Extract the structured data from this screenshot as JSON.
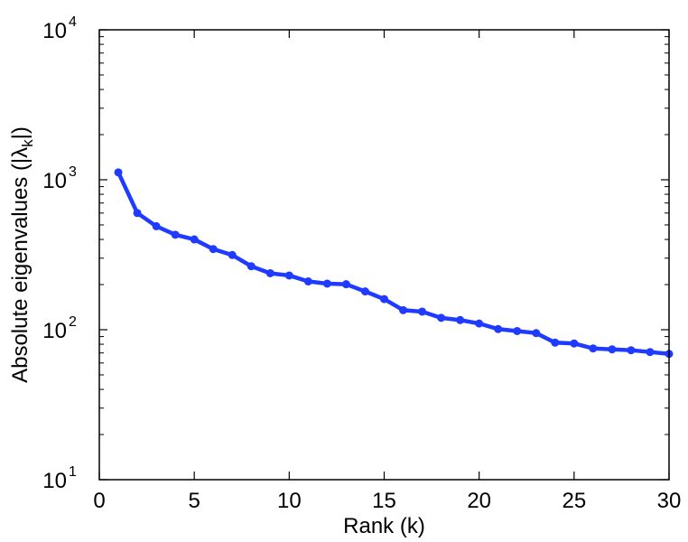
{
  "chart_data": {
    "type": "line",
    "title": "",
    "xlabel": "Rank (k)",
    "ylabel": {
      "prefix": "Absolute eigenvalues (|",
      "symbol": "λ",
      "subscript": "k",
      "suffix": "|)"
    },
    "x_scale": "linear",
    "y_scale": "log",
    "xlim": [
      0,
      30
    ],
    "ylim": [
      10,
      10000
    ],
    "x_ticks": [
      0,
      5,
      10,
      15,
      20,
      25,
      30
    ],
    "x_tick_labels": [
      "0",
      "5",
      "10",
      "15",
      "20",
      "25",
      "30"
    ],
    "y_ticks": [
      10,
      100,
      1000,
      10000
    ],
    "y_tick_labels": [
      {
        "base": "10",
        "exp": "1"
      },
      {
        "base": "10",
        "exp": "2"
      },
      {
        "base": "10",
        "exp": "3"
      },
      {
        "base": "10",
        "exp": "4"
      }
    ],
    "grid": false,
    "legend": "none",
    "series": [
      {
        "color": "#1f3bff",
        "marker": "circle",
        "x": [
          1,
          2,
          3,
          4,
          5,
          6,
          7,
          8,
          9,
          10,
          11,
          12,
          13,
          14,
          15,
          16,
          17,
          18,
          19,
          20,
          21,
          22,
          23,
          24,
          25,
          26,
          27,
          28,
          29,
          30
        ],
        "y": [
          1120,
          600,
          490,
          430,
          400,
          345,
          315,
          265,
          238,
          230,
          210,
          203,
          201,
          180,
          160,
          135,
          132,
          120,
          116,
          110,
          101,
          98,
          95,
          82,
          81,
          75,
          74,
          73,
          71,
          69
        ]
      }
    ]
  }
}
